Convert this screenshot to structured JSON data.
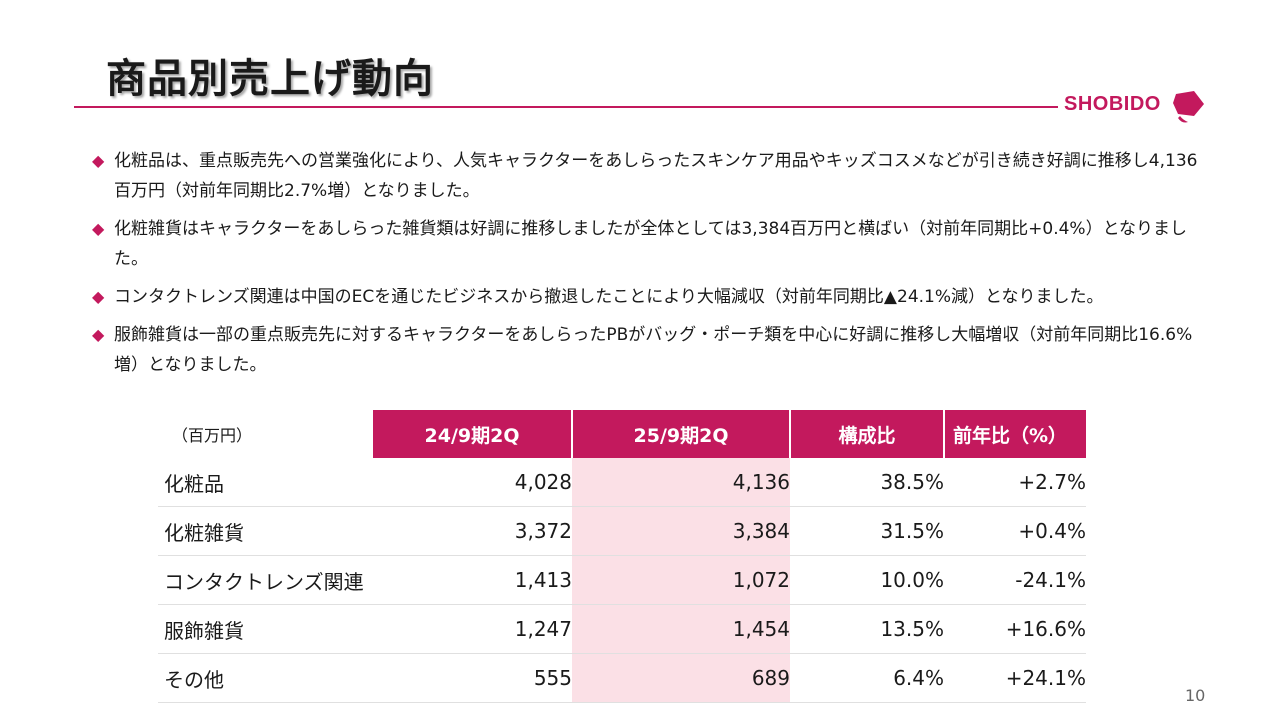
{
  "slide": {
    "title": "商品別売上げ動向",
    "page_number": "10",
    "logo_text": "SHOBIDO",
    "accent_color": "#c3195d",
    "highlight_color": "#fbe0e6"
  },
  "bullets": [
    "化粧品は、重点販売先への営業強化により、人気キャラクターをあしらったスキンケア用品やキッズコスメなどが引き続き好調に推移し4,136百万円（対前年同期比2.7%増）となりました。",
    "化粧雑貨はキャラクターをあしらった雑貨類は好調に推移しましたが全体としては3,384百万円と横ばい（対前年同期比+0.4%）となりました。",
    "コンタクトレンズ関連は中国のECを通じたビジネスから撤退したことにより大幅減収（対前年同期比▲24.1%減）となりました。",
    "服飾雑貨は一部の重点販売先に対するキャラクターをあしらったPBがバッグ・ポーチ類を中心に好調に推移し大幅増収（対前年同期比16.6%増）となりました。"
  ],
  "table": {
    "unit_label": "（百万円）",
    "headers": [
      "24/9期2Q",
      "25/9期2Q",
      "構成比",
      "前年比（%）"
    ],
    "rows": [
      {
        "name": "化粧品",
        "prev": "4,028",
        "cur": "4,136",
        "share": "38.5%",
        "yoy": "+2.7%"
      },
      {
        "name": "化粧雑貨",
        "prev": "3,372",
        "cur": "3,384",
        "share": "31.5%",
        "yoy": "+0.4%"
      },
      {
        "name": "コンタクトレンズ関連",
        "prev": "1,413",
        "cur": "1,072",
        "share": "10.0%",
        "yoy": "-24.1%"
      },
      {
        "name": "服飾雑貨",
        "prev": "1,247",
        "cur": "1,454",
        "share": "13.5%",
        "yoy": "+16.6%"
      },
      {
        "name": "その他",
        "prev": "555",
        "cur": "689",
        "share": "6.4%",
        "yoy": "+24.1%"
      }
    ]
  }
}
